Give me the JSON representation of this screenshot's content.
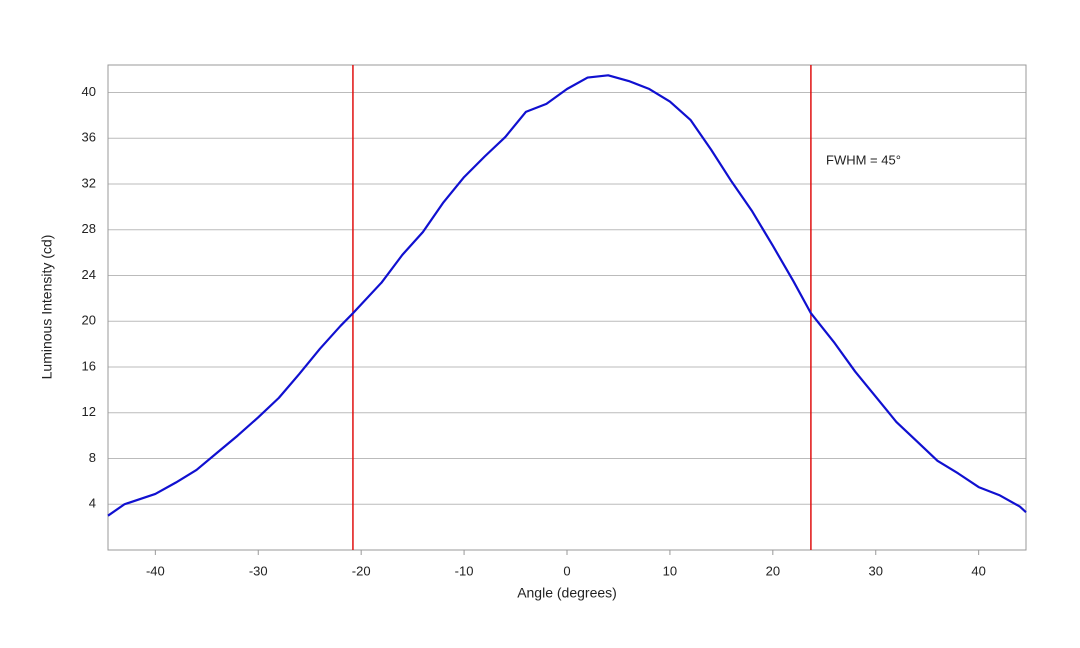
{
  "chart_data": {
    "type": "line",
    "xlabel": "Angle (degrees)",
    "ylabel": "Luminous Intensity (cd)",
    "annotation": "FWHM = 45°",
    "series": [
      {
        "color": "#1010d0",
        "x": [
          -44.6,
          -43,
          -40,
          -38,
          -36,
          -34,
          -32,
          -30,
          -28,
          -26,
          -24,
          -22,
          -20.8,
          -18,
          -16,
          -14,
          -12,
          -10,
          -8,
          -6,
          -4,
          -2,
          0,
          2,
          4,
          6,
          8,
          10,
          12,
          14,
          16,
          18,
          20,
          22,
          23.7,
          26,
          28,
          30,
          32,
          34,
          36,
          38,
          40,
          42,
          44,
          44.6
        ],
        "values": [
          3.0,
          4.0,
          4.9,
          5.9,
          7.0,
          8.5,
          10.0,
          11.6,
          13.3,
          15.4,
          17.6,
          19.6,
          20.7,
          23.4,
          25.8,
          27.8,
          30.4,
          32.6,
          34.4,
          36.1,
          38.3,
          39.0,
          40.3,
          41.3,
          41.5,
          41.0,
          40.3,
          39.2,
          37.6,
          35.0,
          32.2,
          29.6,
          26.6,
          23.5,
          20.7,
          18.1,
          15.6,
          13.4,
          11.2,
          9.5,
          7.8,
          6.7,
          5.5,
          4.8,
          3.8,
          3.3
        ]
      }
    ],
    "vlines": [
      -20.8,
      23.7
    ],
    "vline_color": "#e01010",
    "xlim": [
      -44.6,
      44.6
    ],
    "ylim": [
      0,
      42.4
    ],
    "xticks": [
      -40,
      -30,
      -20,
      -10,
      0,
      10,
      20,
      30,
      40
    ],
    "yticks": [
      4,
      8,
      12,
      16,
      20,
      24,
      28,
      32,
      36,
      40
    ],
    "grid": true
  }
}
